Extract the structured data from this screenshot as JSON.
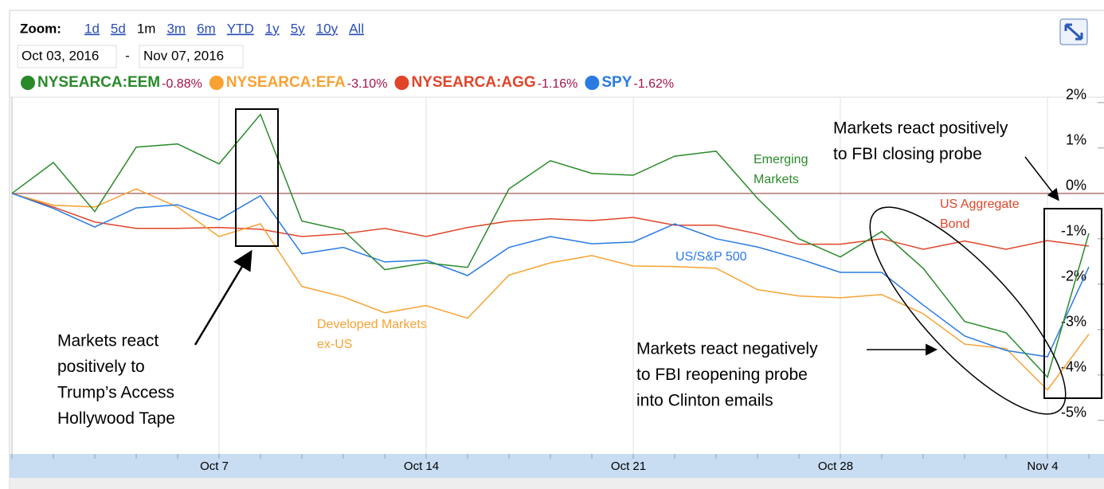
{
  "chart_data": {
    "type": "line",
    "zoom": {
      "label": "Zoom:",
      "options": [
        "1d",
        "5d",
        "1m",
        "3m",
        "6m",
        "YTD",
        "1y",
        "5y",
        "10y",
        "All"
      ],
      "selected": "1m"
    },
    "date_range": {
      "from": "Oct 03, 2016",
      "separator": "-",
      "to": "Nov 07, 2016"
    },
    "categories": [
      null,
      null,
      null,
      null,
      null,
      "Oct 7",
      null,
      null,
      null,
      null,
      "Oct 14",
      null,
      null,
      null,
      null,
      "Oct 21",
      null,
      null,
      null,
      null,
      "Oct 28",
      null,
      null,
      null,
      null,
      "Nov 4",
      null
    ],
    "series": [
      {
        "name": "NYSEARCA:EEM",
        "change": "-0.88%",
        "color": "#2a8a2a",
        "values": [
          0,
          0.68,
          -0.4,
          1.02,
          1.09,
          0.65,
          1.74,
          -0.61,
          -0.81,
          -1.68,
          -1.53,
          -1.63,
          0.1,
          0.72,
          0.44,
          0.4,
          0.82,
          0.93,
          -0.11,
          -1.0,
          -1.4,
          -0.84,
          -1.65,
          -2.82,
          -3.07,
          -4.05,
          -0.88
        ]
      },
      {
        "name": "NYSEARCA:EFA",
        "change": "-3.10%",
        "color": "#f7a233",
        "values": [
          0,
          -0.26,
          -0.3,
          0.1,
          -0.3,
          -0.95,
          -0.67,
          -2.05,
          -2.28,
          -2.63,
          -2.47,
          -2.75,
          -1.8,
          -1.53,
          -1.37,
          -1.6,
          -1.61,
          -1.65,
          -2.12,
          -2.26,
          -2.3,
          -2.23,
          -2.65,
          -3.32,
          -3.42,
          -4.33,
          -3.1
        ]
      },
      {
        "name": "NYSEARCA:AGG",
        "change": "-1.16%",
        "color": "#e0452a",
        "values": [
          0,
          -0.3,
          -0.63,
          -0.77,
          -0.77,
          -0.75,
          -0.79,
          -0.95,
          -0.89,
          -0.77,
          -0.95,
          -0.75,
          -0.61,
          -0.56,
          -0.6,
          -0.53,
          -0.7,
          -0.7,
          -0.89,
          -1.12,
          -1.12,
          -1.0,
          -1.23,
          -1.05,
          -1.23,
          -1.04,
          -1.16
        ]
      },
      {
        "name": "SPY",
        "change": "-1.62%",
        "color": "#2a7ae2",
        "values": [
          0,
          -0.33,
          -0.74,
          -0.32,
          -0.25,
          -0.58,
          -0.05,
          -1.33,
          -1.19,
          -1.51,
          -1.47,
          -1.81,
          -1.19,
          -0.95,
          -1.11,
          -1.07,
          -0.67,
          -1.0,
          -1.18,
          -1.44,
          -1.74,
          -1.74,
          -2.46,
          -3.14,
          -3.46,
          -3.6,
          -1.62
        ]
      }
    ],
    "ylim": [
      -5.74,
      2.12
    ],
    "yticks": [
      {
        "value": 2,
        "label": "2%"
      },
      {
        "value": 1,
        "label": "1%"
      },
      {
        "value": 0,
        "label": "0%"
      },
      {
        "value": -1,
        "label": "-1%"
      },
      {
        "value": -2,
        "label": "-2%"
      },
      {
        "value": -3,
        "label": "-3%"
      },
      {
        "value": -4,
        "label": "-4%"
      },
      {
        "value": -5,
        "label": "-5%"
      }
    ],
    "line_labels": [
      {
        "lines": [
          "Emerging",
          "Markets"
        ]
      },
      {
        "lines": [
          "US Aggregate",
          "Bond"
        ]
      },
      {
        "lines": [
          "US/S&P 500"
        ]
      },
      {
        "lines": [
          "Developed Markets",
          "ex-US"
        ]
      }
    ],
    "annotations": [
      {
        "lines": [
          "Markets react positively",
          "to FBI closing probe"
        ]
      },
      {
        "lines": [
          "Markets react negatively",
          "to FBI reopening probe",
          "into Clinton emails"
        ]
      },
      {
        "lines": [
          "Markets react",
          "positively to",
          "Trump’s Access",
          "Hollywood Tape"
        ]
      }
    ]
  }
}
